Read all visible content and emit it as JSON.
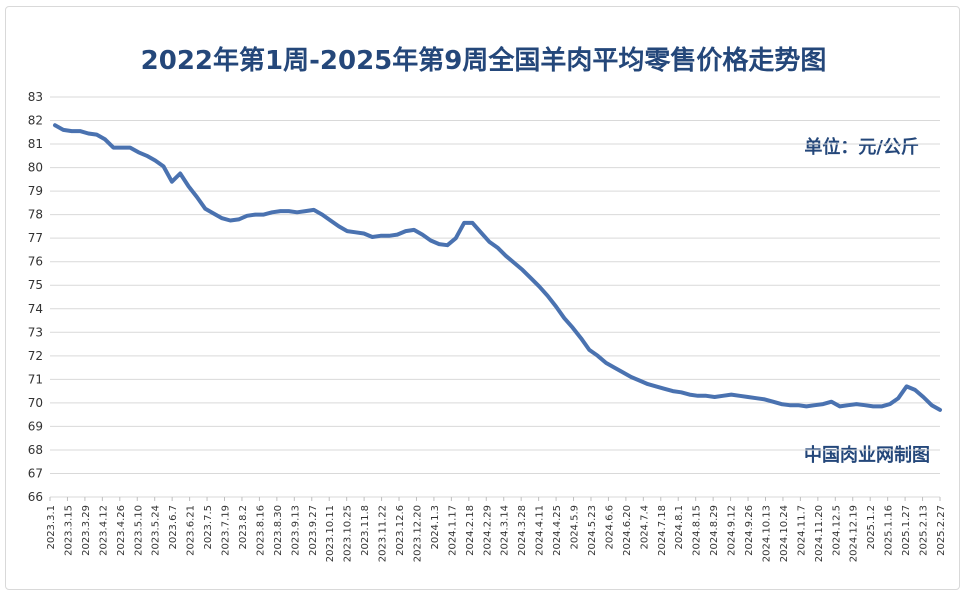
{
  "chart_data": {
    "type": "line",
    "title": "2022年第1周-2025年第9周全国羊肉平均零售价格走势图",
    "unit_label": "单位：元/公斤",
    "source_label": "中国肉业网制图",
    "xlabel": "",
    "ylabel": "",
    "ylim": [
      66,
      83
    ],
    "yticks": [
      66,
      67,
      68,
      69,
      70,
      71,
      72,
      73,
      74,
      75,
      76,
      77,
      78,
      79,
      80,
      81,
      82,
      83
    ],
    "grid": true,
    "legend": "none",
    "line_color": "#4a72b0",
    "grid_color": "#d9d9d9",
    "title_color": "#24477a",
    "x_tick_labels": [
      "2023.3.1",
      "2023.3.15",
      "2023.3.29",
      "2023.4.12",
      "2023.4.26",
      "2023.5.10",
      "2023.5.24",
      "2023.6.7",
      "2023.6.21",
      "2023.7.5",
      "2023.7.19",
      "2023.8.2",
      "2023.8.16",
      "2023.8.30",
      "2023.9.13",
      "2023.9.27",
      "2023.10.11",
      "2023.10.25",
      "2023.11.8",
      "2023.11.22",
      "2023.12.6",
      "2023.12.20",
      "2024.1.3",
      "2024.1.17",
      "2024.2.18",
      "2024.2.29",
      "2024.3.14",
      "2024.3.28",
      "2024.4.11",
      "2024.4.25",
      "2024.5.9",
      "2024.5.23",
      "2024.6.6",
      "2024.6.20",
      "2024.7.4",
      "2024.7.18",
      "2024.8.1",
      "2024.8.15",
      "2024.8.29",
      "2024.9.12",
      "2024.9.26",
      "2024.10.13",
      "2024.10.24",
      "2024.11.7",
      "2024.11.20",
      "2024.12.5",
      "2024.12.19",
      "2025.1.2",
      "2025.1.16",
      "2025.1.27",
      "2025.2.13",
      "2025.2.27"
    ],
    "series": [
      {
        "values": [
          81.8,
          81.6,
          81.55,
          81.55,
          81.45,
          81.4,
          81.2,
          80.85,
          80.85,
          80.85,
          80.65,
          80.5,
          80.3,
          80.05,
          79.4,
          79.75,
          79.2,
          78.75,
          78.25,
          78.05,
          77.85,
          77.75,
          77.8,
          77.95,
          78.0,
          78.0,
          78.1,
          78.15,
          78.15,
          78.1,
          78.15,
          78.2,
          78.0,
          77.75,
          77.5,
          77.3,
          77.25,
          77.2,
          77.05,
          77.1,
          77.1,
          77.15,
          77.3,
          77.35,
          77.15,
          76.9,
          76.75,
          76.7,
          77.0,
          77.65,
          77.65,
          77.25,
          76.85,
          76.6,
          76.25,
          75.95,
          75.65,
          75.3,
          74.95,
          74.55,
          74.1,
          73.6,
          73.2,
          72.75,
          72.25,
          72.0,
          71.7,
          71.5,
          71.3,
          71.1,
          70.95,
          70.8,
          70.7,
          70.6,
          70.5,
          70.45,
          70.35,
          70.3,
          70.3,
          70.25,
          70.3,
          70.35,
          70.3,
          70.25,
          70.2,
          70.15,
          70.05,
          69.95,
          69.9,
          69.9,
          69.85,
          69.9,
          69.95,
          70.05,
          69.85,
          69.9,
          69.95,
          69.9,
          69.85,
          69.85,
          69.95,
          70.2,
          70.7,
          70.55,
          70.25,
          69.9,
          69.7
        ]
      }
    ]
  }
}
